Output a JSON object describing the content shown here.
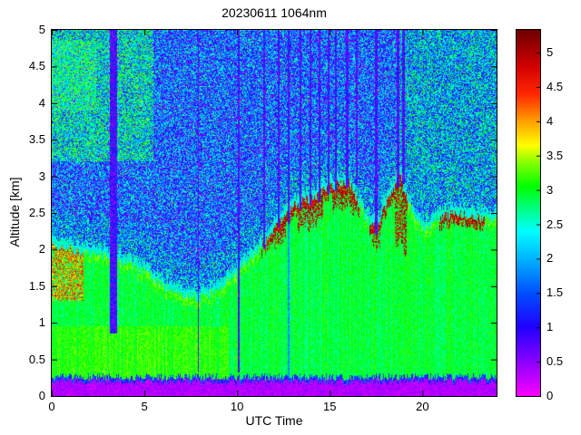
{
  "figure": {
    "background": "#FFFFFF"
  },
  "chart_data": {
    "type": "heatmap",
    "title": "20230611 1064nm",
    "xlabel": "UTC Time",
    "ylabel": "Altitude [km]",
    "xlim": [
      0,
      24
    ],
    "ylim": [
      0,
      5
    ],
    "xticks": [
      0,
      5,
      10,
      15,
      20
    ],
    "yticks": [
      0,
      0.5,
      1,
      1.5,
      2,
      2.5,
      3,
      3.5,
      4,
      4.5,
      5
    ],
    "colorbar": {
      "ticks": [
        0,
        0.5,
        1,
        1.5,
        2,
        2.5,
        3,
        3.5,
        4,
        4.5,
        5
      ],
      "vmin": 0,
      "vmax": 5.33
    },
    "colormap_stops": [
      [
        0.0,
        "#FA00FF"
      ],
      [
        0.5,
        "#8A00FF"
      ],
      [
        1.0,
        "#2000FF"
      ],
      [
        1.5,
        "#0050FF"
      ],
      [
        2.0,
        "#00B4FF"
      ],
      [
        2.4,
        "#00FFFF"
      ],
      [
        2.8,
        "#00FF64"
      ],
      [
        3.05,
        "#00FF00"
      ],
      [
        3.4,
        "#86FF00"
      ],
      [
        3.65,
        "#FFFF00"
      ],
      [
        4.0,
        "#FFA000"
      ],
      [
        4.4,
        "#FF2800"
      ],
      [
        4.8,
        "#D40000"
      ],
      [
        5.33,
        "#6E0000"
      ]
    ],
    "boundary_layer_top": {
      "t": [
        0,
        1,
        2,
        3,
        4,
        5,
        6,
        7,
        8,
        9,
        10,
        11,
        12,
        13,
        14,
        15,
        16,
        17,
        17.6,
        18,
        18.8,
        19.3,
        20,
        21,
        22,
        23,
        24
      ],
      "h": [
        2.05,
        2.0,
        1.95,
        1.9,
        1.8,
        1.7,
        1.5,
        1.38,
        1.35,
        1.45,
        1.7,
        1.95,
        2.3,
        2.6,
        2.7,
        2.85,
        2.95,
        2.4,
        2.3,
        2.6,
        3.0,
        2.6,
        2.25,
        2.45,
        2.5,
        2.45,
        2.4
      ]
    },
    "cloud_top_intervals": [
      [
        11.3,
        16.6
      ],
      [
        17.15,
        19.2
      ],
      [
        20.9,
        23.35
      ]
    ],
    "thick_cloud_regions": [
      [
        12.0,
        12.65,
        0.3
      ],
      [
        13.25,
        14.65,
        0.38
      ],
      [
        15.15,
        16.35,
        0.33
      ],
      [
        17.3,
        17.75,
        0.3
      ],
      [
        18.5,
        19.15,
        0.85
      ]
    ],
    "attenuation_streaks": [
      {
        "t": 3.35,
        "w": 0.4,
        "bottom": 0.85
      },
      {
        "t": 7.9,
        "w": 0.05,
        "bottom": 0.32
      },
      {
        "t": 10.08,
        "w": 0.07,
        "bottom": 0.32
      },
      {
        "t": 11.45,
        "w": 0.12,
        "bottom": 2.0
      },
      {
        "t": 12.25,
        "w": 0.1,
        "bottom": 2.3
      },
      {
        "t": 12.78,
        "w": 0.13,
        "bottom": 2.35,
        "core": true
      },
      {
        "t": 13.42,
        "w": 0.12,
        "bottom": 2.55
      },
      {
        "t": 13.95,
        "w": 0.1,
        "bottom": 2.6
      },
      {
        "t": 14.45,
        "w": 0.13,
        "bottom": 2.65
      },
      {
        "t": 14.92,
        "w": 0.1,
        "bottom": 2.75
      },
      {
        "t": 15.35,
        "w": 0.1,
        "bottom": 2.8
      },
      {
        "t": 15.95,
        "w": 0.12,
        "bottom": 2.85
      },
      {
        "t": 16.45,
        "w": 0.08,
        "bottom": 2.9
      },
      {
        "t": 17.5,
        "w": 0.17,
        "bottom": 2.2
      },
      {
        "t": 18.68,
        "w": 0.16,
        "bottom": 2.85
      },
      {
        "t": 18.98,
        "w": 0.12,
        "bottom": 2.9
      }
    ],
    "surface_band_top_km": 0.26,
    "background_levels": {
      "default": 1.55,
      "near_top": 1.85,
      "upper_left": 2.3,
      "right": 2.0
    },
    "seed": 20230611
  }
}
